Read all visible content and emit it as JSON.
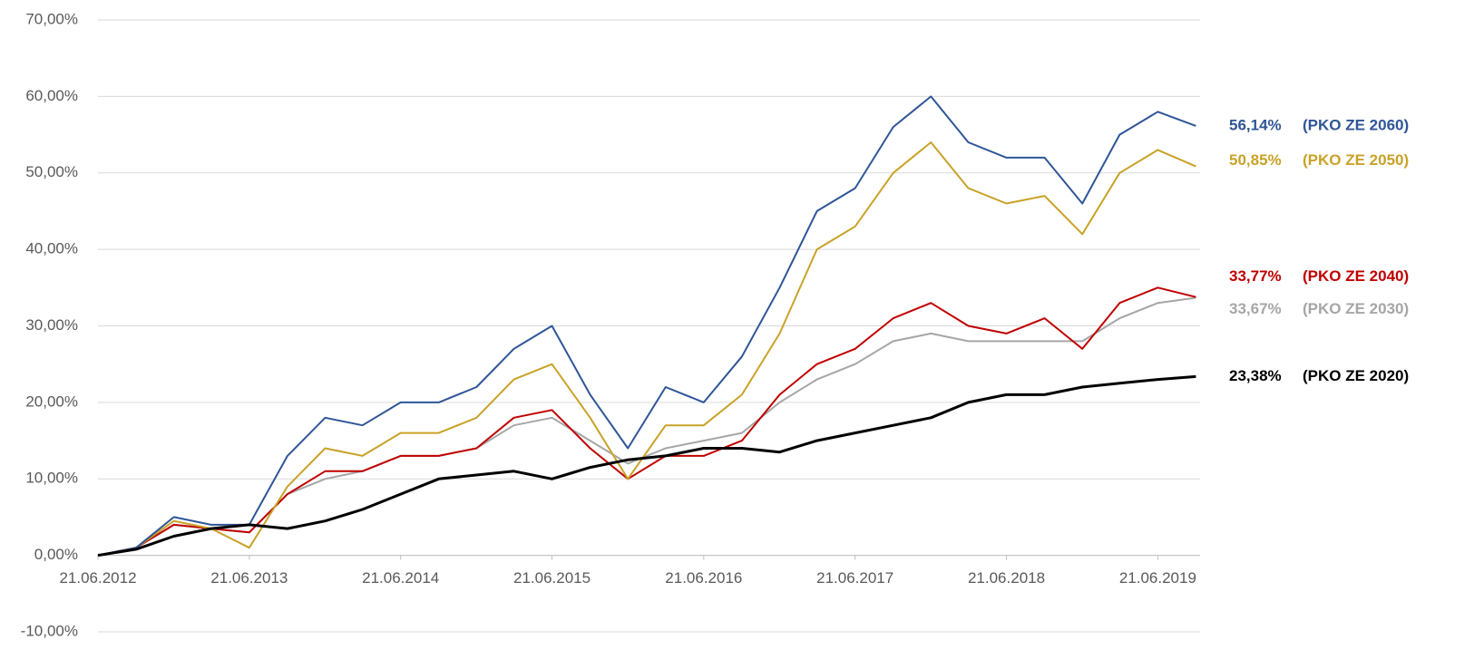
{
  "chart_data": {
    "type": "line",
    "x": [
      "21.06.2012",
      "21.09.2012",
      "21.12.2012",
      "21.03.2013",
      "21.06.2013",
      "21.09.2013",
      "21.12.2013",
      "21.03.2014",
      "21.06.2014",
      "21.09.2014",
      "21.12.2014",
      "21.03.2015",
      "21.06.2015",
      "21.09.2015",
      "21.12.2015",
      "21.03.2016",
      "21.06.2016",
      "21.09.2016",
      "21.12.2016",
      "21.03.2017",
      "21.06.2017",
      "21.09.2017",
      "21.12.2017",
      "21.03.2018",
      "21.06.2018",
      "21.09.2018",
      "21.12.2018",
      "21.03.2019",
      "21.06.2019",
      "21.09.2019"
    ],
    "xlim": [
      "21.06.2012",
      "01.10.2019"
    ],
    "xticks": [
      "21.06.2012",
      "21.06.2013",
      "21.06.2014",
      "21.06.2015",
      "21.06.2016",
      "21.06.2017",
      "21.06.2018",
      "21.06.2019"
    ],
    "ylim": [
      -10,
      70
    ],
    "yticks": [
      {
        "value": -10,
        "label": "-10,00%"
      },
      {
        "value": 0,
        "label": "0,00%"
      },
      {
        "value": 10,
        "label": "10,00%"
      },
      {
        "value": 20,
        "label": "20,00%"
      },
      {
        "value": 30,
        "label": "30,00%"
      },
      {
        "value": 40,
        "label": "40,00%"
      },
      {
        "value": 50,
        "label": "50,00%"
      },
      {
        "value": 60,
        "label": "60,00%"
      },
      {
        "value": 70,
        "label": "70,00%"
      }
    ],
    "grid": true,
    "series": [
      {
        "name": "(PKO ZE 2030)",
        "color": "#a6a6a6",
        "end_label": "33,67%",
        "values": [
          0,
          1,
          4,
          3.5,
          3,
          8,
          10,
          11,
          13,
          13,
          14,
          17,
          18,
          15,
          12,
          14,
          15,
          16,
          20,
          23,
          25,
          28,
          29,
          28,
          28,
          28,
          28,
          31,
          33,
          33.67
        ]
      },
      {
        "name": "(PKO ZE 2040)",
        "color": "#c00000",
        "end_label": "33,77%",
        "values": [
          0,
          1,
          4,
          3.5,
          3,
          8,
          11,
          11,
          13,
          13,
          14,
          18,
          19,
          14,
          10,
          13,
          13,
          15,
          21,
          25,
          27,
          31,
          33,
          30,
          29,
          31,
          27,
          33,
          35,
          33.77
        ]
      },
      {
        "name": "(PKO ZE 2050)",
        "color": "#c9a227",
        "end_label": "50,85%",
        "values": [
          0,
          1,
          4.5,
          3.5,
          1,
          9,
          14,
          13,
          16,
          16,
          18,
          23,
          25,
          18,
          10,
          17,
          17,
          21,
          29,
          40,
          43,
          50,
          54,
          48,
          46,
          47,
          42,
          50,
          53,
          50.85
        ]
      },
      {
        "name": "(PKO ZE 2060)",
        "color": "#2f5597",
        "end_label": "56,14%",
        "values": [
          0,
          1,
          5,
          4,
          4,
          13,
          18,
          17,
          20,
          20,
          22,
          27,
          30,
          21,
          14,
          22,
          20,
          26,
          35,
          45,
          48,
          56,
          60,
          54,
          52,
          52,
          46,
          55,
          58,
          56.14
        ]
      },
      {
        "name": "(PKO ZE 2020)",
        "color": "#000000",
        "end_label": "23,38%",
        "values": [
          0,
          0.8,
          2.5,
          3.5,
          4,
          3.5,
          4.5,
          6,
          8,
          10,
          10.5,
          11,
          10,
          11.5,
          12.5,
          13,
          14,
          14,
          13.5,
          15,
          16,
          17,
          18,
          20,
          21,
          21,
          22,
          22.5,
          23,
          23.38
        ]
      }
    ]
  }
}
